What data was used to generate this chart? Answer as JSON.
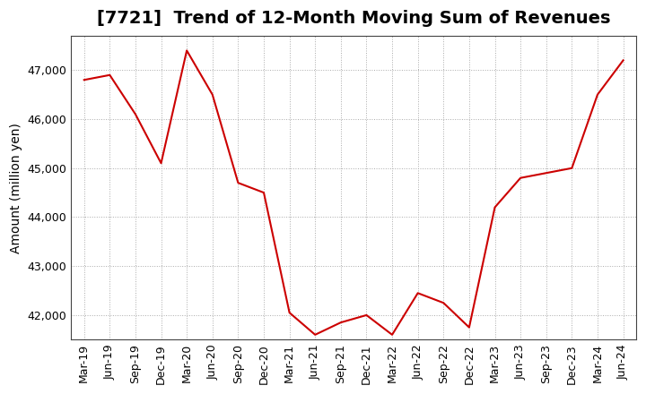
{
  "title": "[7721]  Trend of 12-Month Moving Sum of Revenues",
  "ylabel": "Amount (million yen)",
  "line_color": "#cc0000",
  "background_color": "#ffffff",
  "grid_color": "#aaaaaa",
  "x_labels": [
    "Mar-19",
    "Jun-19",
    "Sep-19",
    "Dec-19",
    "Mar-20",
    "Jun-20",
    "Sep-20",
    "Dec-20",
    "Mar-21",
    "Jun-21",
    "Sep-21",
    "Dec-21",
    "Mar-22",
    "Jun-22",
    "Sep-22",
    "Dec-22",
    "Mar-23",
    "Jun-23",
    "Sep-23",
    "Dec-23",
    "Mar-24",
    "Jun-24"
  ],
  "y_values": [
    46800,
    46900,
    46100,
    45100,
    47400,
    46500,
    44700,
    44500,
    42050,
    41600,
    41850,
    42000,
    41600,
    42450,
    42250,
    41750,
    44200,
    44800,
    44900,
    45000,
    46500,
    47200
  ],
  "ylim": [
    41500,
    47700
  ],
  "yticks": [
    42000,
    43000,
    44000,
    45000,
    46000,
    47000
  ],
  "title_fontsize": 14,
  "axis_fontsize": 10,
  "tick_fontsize": 9
}
